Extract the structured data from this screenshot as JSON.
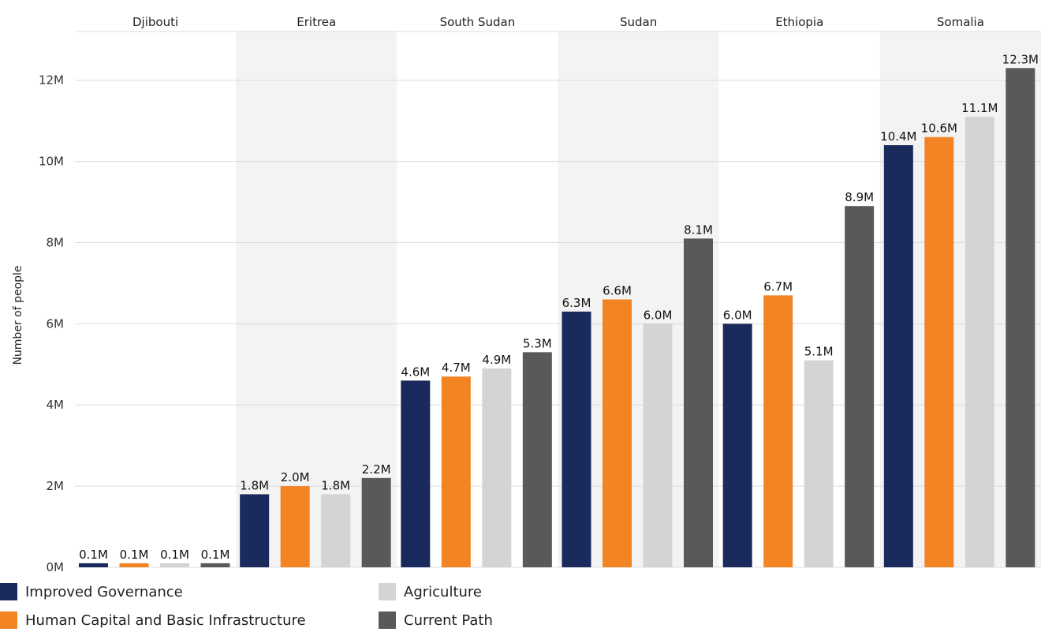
{
  "chart_data": {
    "type": "bar",
    "ylabel": "Number of people",
    "ylim": [
      0,
      13.2
    ],
    "yticks": [
      "0M",
      "2M",
      "4M",
      "6M",
      "8M",
      "10M",
      "12M"
    ],
    "ytick_values": [
      0,
      2,
      4,
      6,
      8,
      10,
      12
    ],
    "grid": true,
    "legend_position": "bottom-left",
    "categories": [
      "Djibouti",
      "Eritrea",
      "South Sudan",
      "Sudan",
      "Ethiopia",
      "Somalia"
    ],
    "series": [
      {
        "name": "Improved Governance",
        "color": "#1b2a5c",
        "values": [
          0.1,
          1.8,
          4.6,
          6.3,
          6.0,
          10.4
        ],
        "labels": [
          "0.1M",
          "1.8M",
          "4.6M",
          "6.3M",
          "6.0M",
          "10.4M"
        ]
      },
      {
        "name": "Human Capital and Basic Infrastructure",
        "color": "#f28424",
        "values": [
          0.1,
          2.0,
          4.7,
          6.6,
          6.7,
          10.6
        ],
        "labels": [
          "0.1M",
          "2.0M",
          "4.7M",
          "6.6M",
          "6.7M",
          "10.6M"
        ]
      },
      {
        "name": "Agriculture",
        "color": "#d3d4d6",
        "values": [
          0.1,
          1.8,
          4.9,
          6.0,
          5.1,
          11.1
        ],
        "labels": [
          "0.1M",
          "1.8M",
          "4.9M",
          "6.0M",
          "5.1M",
          "11.1M"
        ]
      },
      {
        "name": "Current Path",
        "color": "#58595b",
        "values": [
          0.1,
          2.2,
          5.3,
          8.1,
          8.9,
          12.3
        ],
        "labels": [
          "0.1M",
          "2.2M",
          "5.3M",
          "8.1M",
          "8.9M",
          "12.3M"
        ]
      }
    ],
    "band_colors": [
      "#ffffff",
      "#f3f3f3"
    ],
    "grid_color": "#dcdcdc"
  }
}
